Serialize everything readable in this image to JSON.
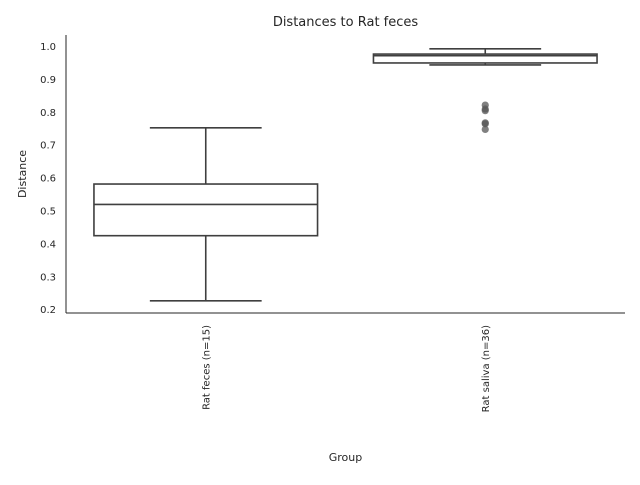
{
  "chart_data": {
    "type": "box",
    "title": "Distances to Rat feces",
    "xlabel": "Group",
    "ylabel": "Distance",
    "ylim": [
      0.19,
      1.035
    ],
    "yticks": [
      "0.2",
      "0.3",
      "0.4",
      "0.5",
      "0.6",
      "0.7",
      "0.8",
      "0.9",
      "1.0"
    ],
    "grid": false,
    "categories": [
      "Rat feces (n=15)",
      "Rat saliva (n=36)"
    ],
    "boxes": [
      {
        "category": "Rat feces (n=15)",
        "whisker_low": 0.227,
        "q1": 0.425,
        "median": 0.52,
        "q3": 0.582,
        "whisker_high": 0.753,
        "outliers": []
      },
      {
        "category": "Rat saliva (n=36)",
        "whisker_low": 0.944,
        "q1": 0.95,
        "median": 0.972,
        "q3": 0.977,
        "whisker_high": 0.993,
        "outliers": [
          0.822,
          0.81,
          0.805,
          0.768,
          0.765,
          0.748
        ]
      }
    ],
    "colors": {
      "line": "#3f3f3f",
      "outlier": "#555555",
      "axis": "#262626"
    }
  }
}
